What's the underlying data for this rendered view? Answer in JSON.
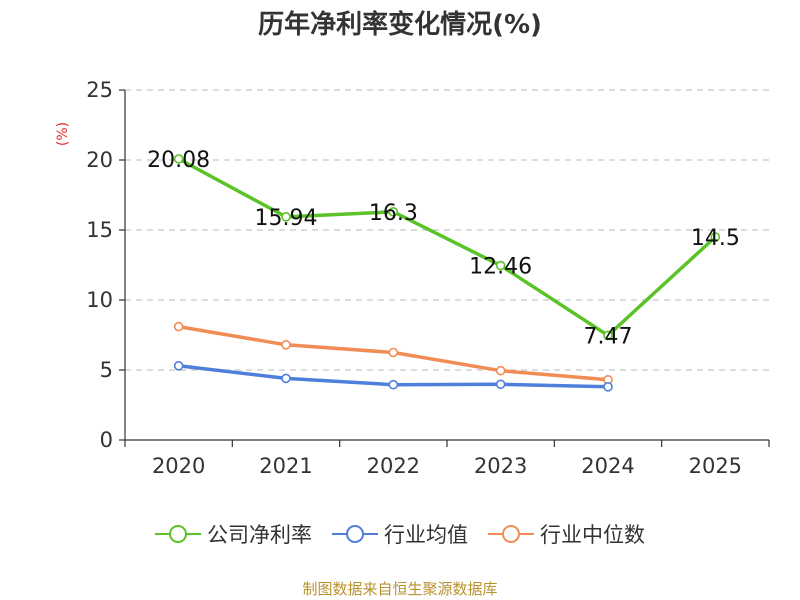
{
  "chart_data": {
    "type": "line",
    "title": "历年净利率变化情况(%)",
    "ylabel": "(%)",
    "xlabel": "",
    "categories": [
      "2020",
      "2021",
      "2022",
      "2023",
      "2024",
      "2025"
    ],
    "ylim": [
      0,
      25
    ],
    "yticks": [
      "0",
      "5",
      "10",
      "15",
      "20",
      "25"
    ],
    "grid": true,
    "legend_position": "bottom",
    "series": [
      {
        "name": "公司净利率",
        "color": "#5bc227",
        "values": [
          20.08,
          15.94,
          16.3,
          12.46,
          7.47,
          14.5
        ],
        "labels": [
          "20.08",
          "15.94",
          "16.3",
          "12.46",
          "7.47",
          "14.5"
        ]
      },
      {
        "name": "行业均值",
        "color": "#4e7fdb",
        "values": [
          5.3,
          4.4,
          3.95,
          3.98,
          3.8,
          null
        ]
      },
      {
        "name": "行业中位数",
        "color": "#f28c55",
        "values": [
          8.1,
          6.8,
          6.25,
          4.95,
          4.3,
          null
        ]
      }
    ]
  },
  "source": "制图数据来自恒生聚源数据库"
}
